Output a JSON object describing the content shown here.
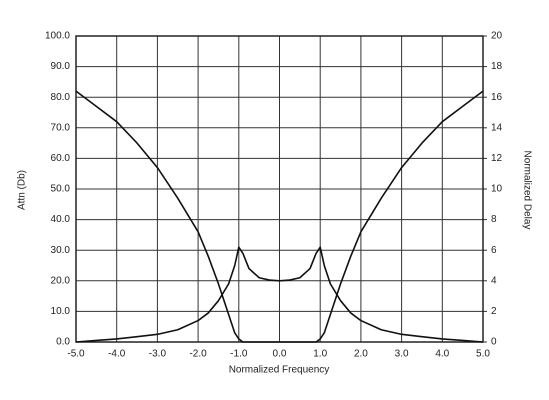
{
  "chart_data": {
    "type": "line",
    "xlabel": "Normalized Frequency",
    "ylabel": "Attn (Db)",
    "y2label": "Normalized Delay",
    "x": [
      -5,
      -4.5,
      -4,
      -3.5,
      -3,
      -2.5,
      -2,
      -1.75,
      -1.5,
      -1.25,
      -1.1,
      -1,
      -0.9,
      -0.75,
      -0.5,
      -0.25,
      0,
      0.25,
      0.5,
      0.75,
      0.9,
      1,
      1.1,
      1.25,
      1.5,
      1.75,
      2,
      2.5,
      3,
      3.5,
      4,
      4.5,
      5
    ],
    "series": [
      {
        "name": "Attn",
        "color": "#111111",
        "values": [
          82,
          77,
          72,
          65,
          57,
          47,
          36,
          28,
          19,
          9,
          3,
          1,
          0,
          0,
          0,
          0,
          0,
          0,
          0,
          0,
          0,
          1,
          3,
          9,
          19,
          28,
          36,
          47,
          57,
          65,
          72,
          77,
          82
        ]
      },
      {
        "name": "Delay",
        "color": "#111111",
        "axis": "y2",
        "values": [
          0,
          0.1,
          0.2,
          0.35,
          0.5,
          0.8,
          1.4,
          1.9,
          2.7,
          3.8,
          5,
          6.2,
          5.8,
          4.8,
          4.2,
          4.05,
          4,
          4.05,
          4.2,
          4.8,
          5.8,
          6.2,
          5,
          3.8,
          2.7,
          1.9,
          1.4,
          0.8,
          0.5,
          0.35,
          0.2,
          0.1,
          0
        ]
      }
    ],
    "xlim": [
      -5,
      5
    ],
    "xticks": [
      {
        "value": -5,
        "label": "-5.0"
      },
      {
        "value": -4,
        "label": "-4.0"
      },
      {
        "value": -3,
        "label": "-3.0"
      },
      {
        "value": -2,
        "label": "-2.0"
      },
      {
        "value": -1,
        "label": "-1.0"
      },
      {
        "value": 0,
        "label": "0.0"
      },
      {
        "value": 1,
        "label": "1.0"
      },
      {
        "value": 2,
        "label": "2.0"
      },
      {
        "value": 3,
        "label": "3.0"
      },
      {
        "value": 4,
        "label": "4.0"
      },
      {
        "value": 5,
        "label": "5.0"
      }
    ],
    "ylim": [
      0,
      100
    ],
    "yticks": [
      {
        "value": 0,
        "label": "0.0"
      },
      {
        "value": 10,
        "label": "10.0"
      },
      {
        "value": 20,
        "label": "20.0"
      },
      {
        "value": 30,
        "label": "30.0"
      },
      {
        "value": 40,
        "label": "40.0"
      },
      {
        "value": 50,
        "label": "50.0"
      },
      {
        "value": 60,
        "label": "60.0"
      },
      {
        "value": 70,
        "label": "70.0"
      },
      {
        "value": 80,
        "label": "80.0"
      },
      {
        "value": 90,
        "label": "90.0"
      },
      {
        "value": 100,
        "label": "100.0"
      }
    ],
    "y2lim": [
      0,
      20
    ],
    "y2ticks": [
      0,
      2,
      4,
      6,
      8,
      10,
      12,
      14,
      16,
      18,
      20
    ],
    "grid": true
  }
}
